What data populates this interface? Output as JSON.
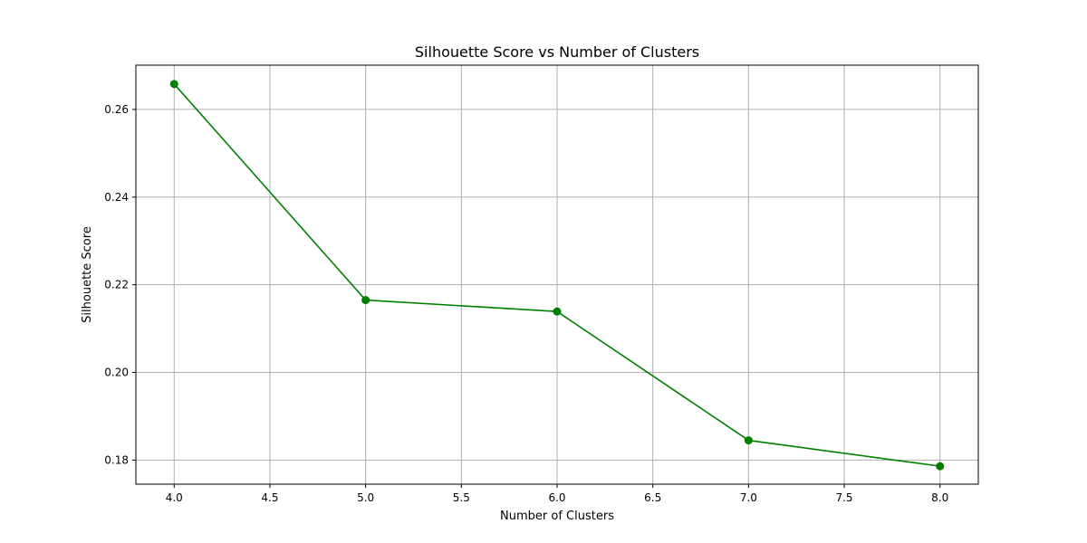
{
  "chart_data": {
    "type": "line",
    "title": "Silhouette Score vs Number of Clusters",
    "xlabel": "Number of Clusters",
    "ylabel": "Silhouette Score",
    "x": [
      4,
      5,
      6,
      7,
      8
    ],
    "series": [
      {
        "values": [
          0.2658,
          0.2165,
          0.2139,
          0.1845,
          0.1786
        ],
        "color": "#008000",
        "marker": "circle"
      }
    ],
    "xlim": [
      3.8,
      8.2
    ],
    "ylim": [
      0.1745,
      0.2701
    ],
    "x_ticks": [
      4.0,
      4.5,
      5.0,
      5.5,
      6.0,
      6.5,
      7.0,
      7.5,
      8.0
    ],
    "x_tick_labels": [
      "4.0",
      "4.5",
      "5.0",
      "5.5",
      "6.0",
      "6.5",
      "7.0",
      "7.5",
      "8.0"
    ],
    "y_ticks": [
      0.18,
      0.2,
      0.22,
      0.24,
      0.26
    ],
    "y_tick_labels": [
      "0.18",
      "0.20",
      "0.22",
      "0.24",
      "0.26"
    ],
    "grid": true
  }
}
